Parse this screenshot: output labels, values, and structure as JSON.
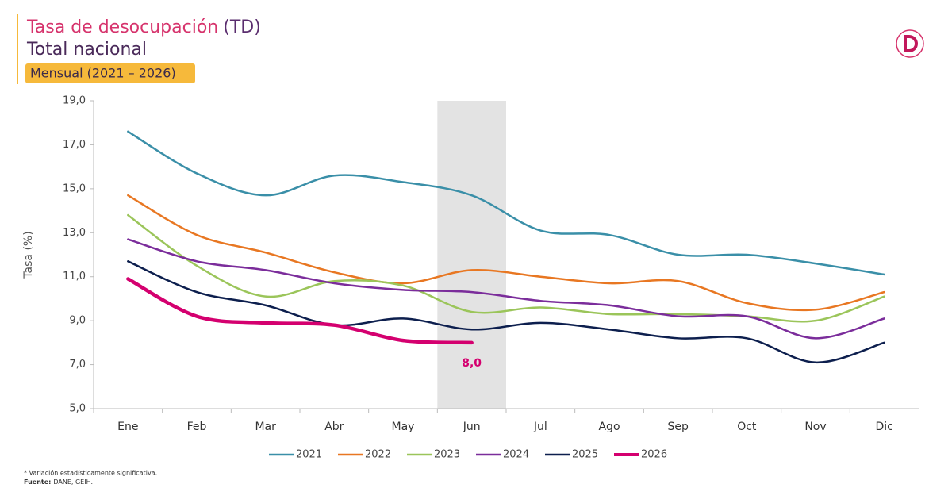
{
  "chart_data": {
    "type": "line",
    "title": "Tasa de desocupación",
    "title_suffix": "(TD)",
    "subtitle": "Total nacional",
    "period": "Mensual (2021 – 2026)",
    "y_label": "Tasa (%)",
    "categories": [
      "Ene",
      "Feb",
      "Mar",
      "Abr",
      "May",
      "Jun",
      "Jul",
      "Ago",
      "Sep",
      "Oct",
      "Nov",
      "Dic"
    ],
    "highlight": "Jun",
    "ylim": [
      5,
      19
    ],
    "yticks": [
      {
        "value": 5,
        "label": "5,0"
      },
      {
        "value": 7,
        "label": "7,0"
      },
      {
        "value": 9,
        "label": "9,0"
      },
      {
        "value": 11,
        "label": "11,0"
      },
      {
        "value": 13,
        "label": "13,0"
      },
      {
        "value": 15,
        "label": "15,0"
      },
      {
        "value": 17,
        "label": "17,0"
      },
      {
        "value": 19,
        "label": "19,0"
      }
    ],
    "grid": false,
    "legend": "bottom",
    "series": [
      {
        "name": "2021",
        "color": "#3a8fa8",
        "values": [
          17.6,
          15.7,
          14.7,
          15.6,
          15.3,
          14.7,
          13.1,
          12.9,
          12.0,
          12.0,
          11.6,
          11.1
        ]
      },
      {
        "name": "2022",
        "color": "#e87722",
        "values": [
          14.7,
          12.9,
          12.1,
          11.2,
          10.7,
          11.3,
          11.0,
          10.7,
          10.8,
          9.8,
          9.5,
          10.3
        ]
      },
      {
        "name": "2023",
        "color": "#9bc55a",
        "values": [
          13.8,
          11.5,
          10.1,
          10.8,
          10.6,
          9.4,
          9.6,
          9.3,
          9.3,
          9.2,
          9.0,
          10.1
        ]
      },
      {
        "name": "2024",
        "color": "#7b2d9b",
        "values": [
          12.7,
          11.7,
          11.3,
          10.7,
          10.4,
          10.3,
          9.9,
          9.7,
          9.2,
          9.2,
          8.2,
          9.1
        ]
      },
      {
        "name": "2025",
        "color": "#0d1f4e",
        "values": [
          11.7,
          10.3,
          9.7,
          8.8,
          9.1,
          8.6,
          8.9,
          8.6,
          8.2,
          8.2,
          7.1,
          8.0
        ]
      },
      {
        "name": "2026",
        "color": "#d4006f",
        "values": [
          10.9,
          9.2,
          8.9,
          8.8,
          8.1,
          8.0,
          null,
          null,
          null,
          null,
          null,
          null
        ],
        "value_labels": [
          null,
          null,
          null,
          null,
          null,
          "8,0",
          null,
          null,
          null,
          null,
          null,
          null
        ]
      }
    ],
    "footnote": "* Variación estadísticamente significativa.",
    "source_label": "Fuente:",
    "source": "DANE, GEIH."
  }
}
